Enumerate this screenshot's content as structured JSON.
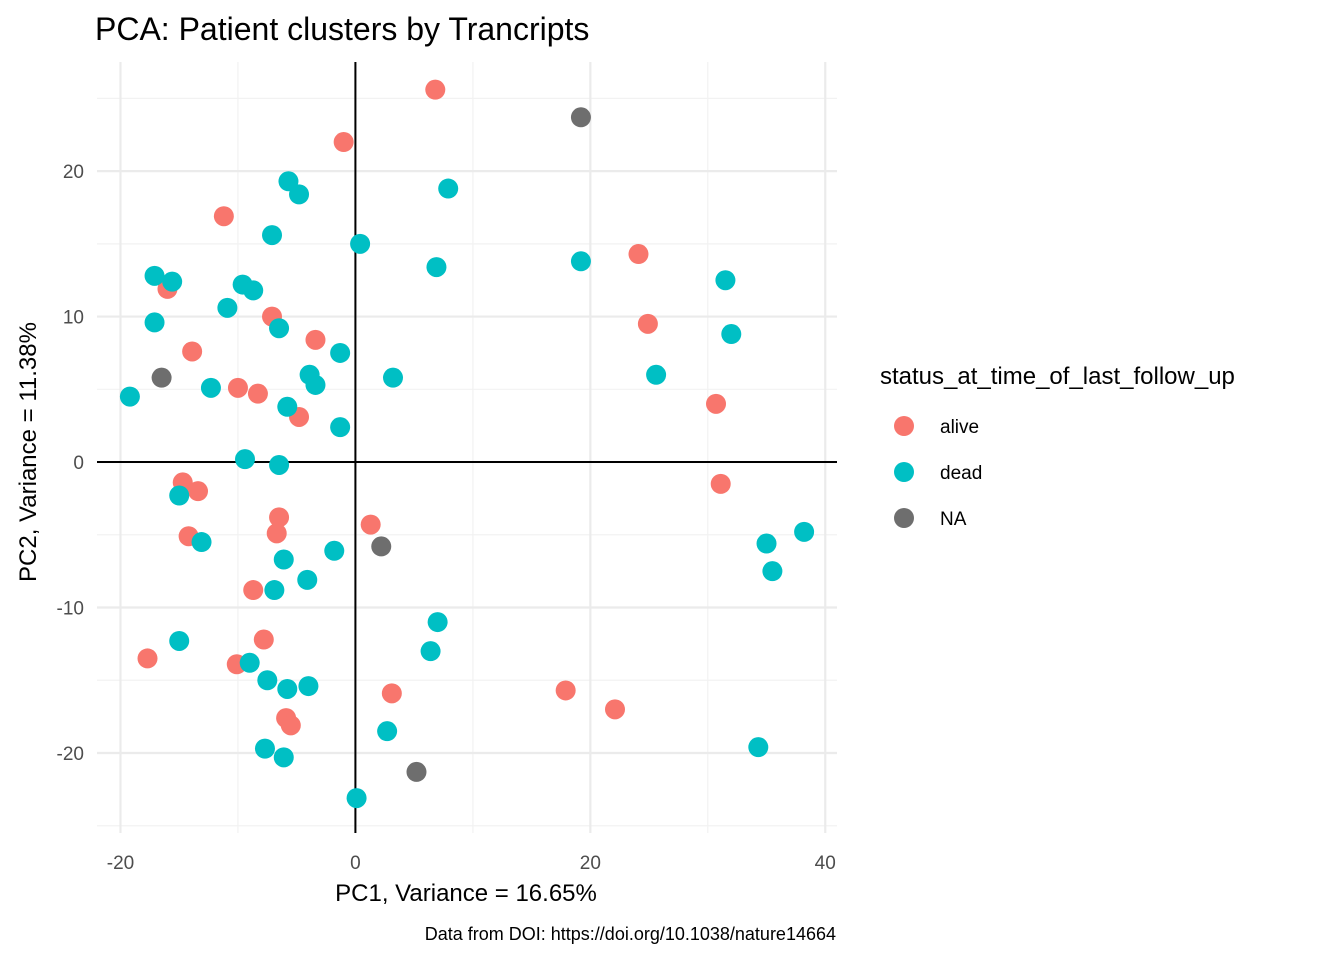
{
  "chart_data": {
    "type": "scatter",
    "title": "PCA: Patient clusters by Trancripts",
    "xlabel": "PC1, Variance = 16.65%",
    "ylabel": "PC2, Variance = 11.38%",
    "caption": "Data from DOI: https://doi.org/10.1038/nature14664",
    "xlim": [
      -22,
      41
    ],
    "ylim": [
      -25.5,
      27.5
    ],
    "x_ticks": [
      -20,
      0,
      20,
      40
    ],
    "y_ticks": [
      -20,
      -10,
      0,
      10,
      20
    ],
    "x_tick_labels": [
      "-20",
      "0",
      "20",
      "40"
    ],
    "y_tick_labels": [
      "-20",
      "-10",
      "0",
      "10",
      "20"
    ],
    "grid": true,
    "reference_lines": {
      "x": 0,
      "y": 0
    },
    "legend": {
      "title": "status_at_time_of_last_follow_up",
      "position": "right",
      "entries": [
        {
          "label": "alive",
          "color": "#F8766D"
        },
        {
          "label": "dead",
          "color": "#00BFC4"
        },
        {
          "label": "NA",
          "color": "#6E6E6E"
        }
      ]
    },
    "series": [
      {
        "name": "alive",
        "color": "#F8766D",
        "points": [
          [
            6.8,
            25.6
          ],
          [
            -1.0,
            22.0
          ],
          [
            -11.2,
            16.9
          ],
          [
            24.1,
            14.3
          ],
          [
            -16.0,
            11.9
          ],
          [
            24.9,
            9.5
          ],
          [
            -7.1,
            10.0
          ],
          [
            -3.4,
            8.4
          ],
          [
            -13.9,
            7.6
          ],
          [
            -10.0,
            5.1
          ],
          [
            -8.3,
            4.7
          ],
          [
            30.7,
            4.0
          ],
          [
            -4.8,
            3.1
          ],
          [
            -14.7,
            -1.4
          ],
          [
            -13.4,
            -2.0
          ],
          [
            31.1,
            -1.5
          ],
          [
            -6.5,
            -3.8
          ],
          [
            1.3,
            -4.3
          ],
          [
            -6.7,
            -4.9
          ],
          [
            -14.2,
            -5.1
          ],
          [
            -8.7,
            -8.8
          ],
          [
            -7.8,
            -12.2
          ],
          [
            -17.7,
            -13.5
          ],
          [
            -10.1,
            -13.9
          ],
          [
            3.1,
            -15.9
          ],
          [
            17.9,
            -15.7
          ],
          [
            22.1,
            -17.0
          ],
          [
            -5.9,
            -17.6
          ],
          [
            -5.5,
            -18.1
          ]
        ]
      },
      {
        "name": "dead",
        "color": "#00BFC4",
        "points": [
          [
            -5.7,
            19.3
          ],
          [
            -4.8,
            18.4
          ],
          [
            7.9,
            18.8
          ],
          [
            -7.1,
            15.6
          ],
          [
            0.4,
            15.0
          ],
          [
            6.9,
            13.4
          ],
          [
            19.2,
            13.8
          ],
          [
            -17.1,
            12.8
          ],
          [
            -15.6,
            12.4
          ],
          [
            31.5,
            12.5
          ],
          [
            -9.6,
            12.2
          ],
          [
            -8.7,
            11.8
          ],
          [
            -10.9,
            10.6
          ],
          [
            -17.1,
            9.6
          ],
          [
            -6.5,
            9.2
          ],
          [
            32.0,
            8.8
          ],
          [
            -1.3,
            7.5
          ],
          [
            -3.9,
            6.0
          ],
          [
            25.6,
            6.0
          ],
          [
            3.2,
            5.8
          ],
          [
            -3.4,
            5.3
          ],
          [
            -12.3,
            5.1
          ],
          [
            -19.2,
            4.5
          ],
          [
            -5.8,
            3.8
          ],
          [
            -1.3,
            2.4
          ],
          [
            -9.4,
            0.2
          ],
          [
            -6.5,
            -0.2
          ],
          [
            -15.0,
            -2.3
          ],
          [
            -13.1,
            -5.5
          ],
          [
            35.0,
            -5.6
          ],
          [
            38.2,
            -4.8
          ],
          [
            -6.1,
            -6.7
          ],
          [
            -1.8,
            -6.1
          ],
          [
            35.5,
            -7.5
          ],
          [
            -4.1,
            -8.1
          ],
          [
            -6.9,
            -8.8
          ],
          [
            7.0,
            -11.0
          ],
          [
            -15.0,
            -12.3
          ],
          [
            6.4,
            -13.0
          ],
          [
            -9.0,
            -13.8
          ],
          [
            -7.5,
            -15.0
          ],
          [
            -5.8,
            -15.6
          ],
          [
            -4.0,
            -15.4
          ],
          [
            2.7,
            -18.5
          ],
          [
            -7.7,
            -19.7
          ],
          [
            -6.1,
            -20.3
          ],
          [
            34.3,
            -19.6
          ],
          [
            0.1,
            -23.1
          ]
        ]
      },
      {
        "name": "NA",
        "color": "#6E6E6E",
        "points": [
          [
            19.2,
            23.7
          ],
          [
            -16.5,
            5.8
          ],
          [
            2.2,
            -5.8
          ],
          [
            5.2,
            -21.3
          ]
        ]
      }
    ]
  }
}
